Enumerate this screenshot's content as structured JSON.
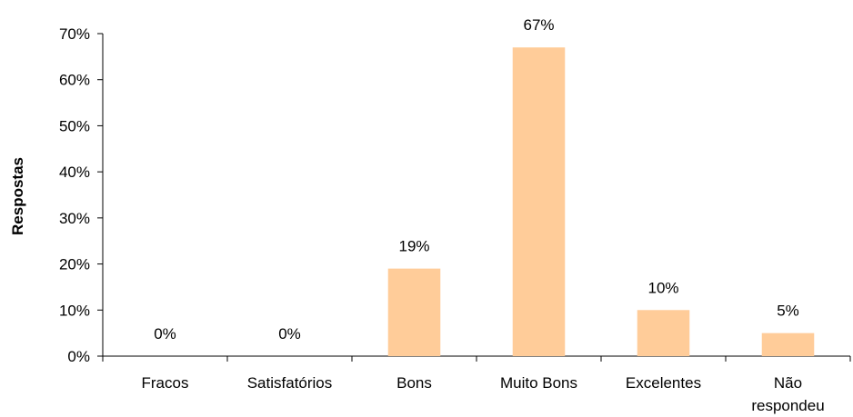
{
  "chart_data": {
    "type": "bar",
    "categories": [
      "Fracos",
      "Satisfatórios",
      "Bons",
      "Muito Bons",
      "Excelentes",
      "Não respondeu"
    ],
    "values": [
      0,
      0,
      19,
      67,
      10,
      5
    ],
    "data_labels": [
      "0%",
      "0%",
      "19%",
      "67%",
      "10%",
      "5%"
    ],
    "title": "",
    "xlabel": "",
    "ylabel": "Respostas",
    "ylim": [
      0,
      70
    ],
    "yticks": [
      0,
      10,
      20,
      30,
      40,
      50,
      60,
      70
    ],
    "ytick_labels": [
      "0%",
      "10%",
      "20%",
      "30%",
      "40%",
      "50%",
      "60%",
      "70%"
    ],
    "grid": false,
    "legend": "none",
    "bar_color": "#FFCC99"
  }
}
